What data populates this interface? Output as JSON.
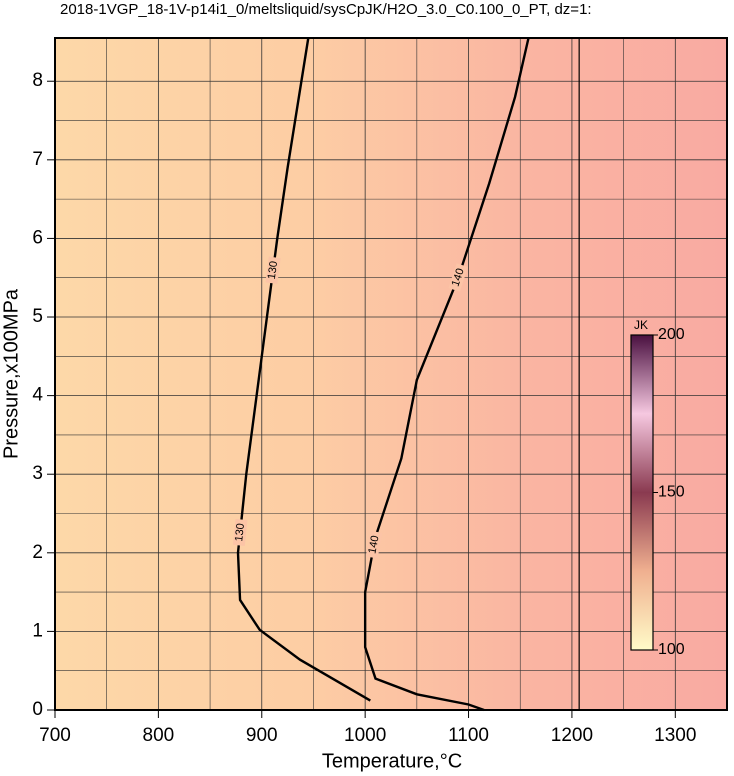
{
  "chart_data": {
    "type": "contour",
    "title": "2018-1VGP_18-1V-p14i1_0/meltsliquid/sysCpJK/H2O_3.0_C0.100_0_PT, dz=1:",
    "x_label": "Temperature,°C",
    "y_label": "Pressure,x100MPa",
    "xlim": [
      700,
      1350
    ],
    "ylim": [
      0,
      8.55
    ],
    "xticks": [
      700,
      800,
      900,
      1000,
      1100,
      1200,
      1300
    ],
    "yticks": [
      0,
      1,
      2,
      3,
      4,
      5,
      6,
      7,
      8
    ],
    "xminorticks": [
      750,
      850,
      950,
      1050,
      1150,
      1250
    ],
    "yminorticks": [
      0.5,
      1.5,
      2.5,
      3.5,
      4.5,
      5.5,
      6.5,
      7.5
    ],
    "grid": true,
    "contours": [
      {
        "level": 130,
        "color": "#000000",
        "x": [
          1005,
          937,
          898,
          879,
          877,
          885,
          895,
          905,
          915,
          925,
          945
        ],
        "y": [
          0.12,
          0.64,
          1.02,
          1.4,
          2.0,
          3.0,
          4.0,
          5.0,
          6.0,
          6.9,
          8.55
        ]
      },
      {
        "level": 140,
        "color": "#000000",
        "x": [
          1115,
          1100,
          1050,
          1010,
          1000,
          1000,
          1010,
          1035,
          1050,
          1090,
          1120,
          1145,
          1158
        ],
        "y": [
          0,
          0.07,
          0.2,
          0.4,
          0.8,
          1.5,
          2.2,
          3.2,
          4.2,
          5.5,
          6.7,
          7.8,
          8.55
        ]
      }
    ],
    "phase_boundary": {
      "x": [
        1207,
        1207
      ],
      "y": [
        0,
        8.55
      ]
    },
    "colorbar": {
      "label": "JK",
      "clim": [
        100,
        200
      ],
      "ticks": [
        100,
        150,
        200
      ],
      "colors": [
        "#fffbc8",
        "#f0b090",
        "#8a3a50",
        "#f6c8e0",
        "#4a1040"
      ]
    }
  }
}
